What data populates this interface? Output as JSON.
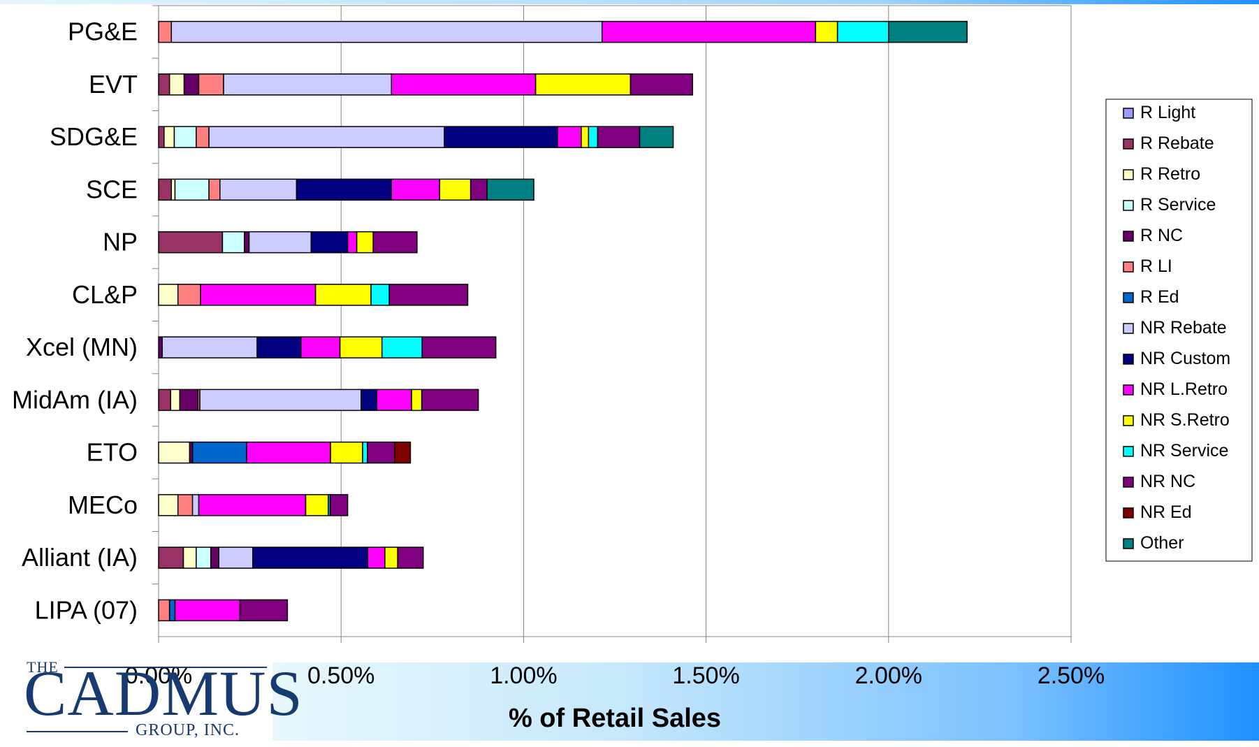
{
  "colors": {
    "R Light": "#9999ff",
    "R Rebate": "#993366",
    "R Retro": "#ffffcc",
    "R Service": "#ccffff",
    "R NC": "#660066",
    "R LI": "#ff8080",
    "R Ed": "#0066cc",
    "NR Rebate": "#ccccff",
    "NR Custom": "#000080",
    "NR L.Retro": "#ff00ff",
    "NR S.Retro": "#ffff00",
    "NR Service": "#00ffff",
    "NR NC": "#800080",
    "NR Ed": "#800000",
    "Other": "#008080"
  },
  "logo": {
    "the": "THE",
    "main": "CADMUS",
    "sub": "GROUP, INC."
  },
  "chart_data": {
    "type": "bar",
    "orientation": "horizontal",
    "stacked": true,
    "title": "",
    "xlabel": "% of Retail Sales",
    "ylabel": "",
    "xlim": [
      0,
      0.025
    ],
    "x_ticks": [
      0,
      0.005,
      0.01,
      0.015,
      0.02,
      0.025
    ],
    "x_tick_labels": [
      "0.00%",
      "0.50%",
      "1.00%",
      "1.50%",
      "2.00%",
      "2.50%"
    ],
    "grid": "vertical",
    "legend_position": "right",
    "categories": [
      "PG&E",
      "EVT",
      "SDG&E",
      "SCE",
      "NP",
      "CL&P",
      "Xcel (MN)",
      "MidAm (IA)",
      "ETO",
      "MECo",
      "Alliant (IA)",
      "LIPA (07)"
    ],
    "series": [
      {
        "name": "R Light",
        "values": [
          0,
          0,
          0,
          0,
          0,
          0,
          0,
          0,
          0,
          0,
          0,
          0
        ]
      },
      {
        "name": "R Rebate",
        "values": [
          0,
          0.0003,
          0.00015,
          0.00035,
          0.00175,
          0,
          0,
          0.00033,
          0,
          0,
          0.00068,
          0
        ]
      },
      {
        "name": "R Retro",
        "values": [
          0,
          0.0004,
          0.00028,
          0.0001,
          0,
          0.00053,
          0,
          0.00025,
          0.00085,
          0.00053,
          0.00035,
          0
        ]
      },
      {
        "name": "R Service",
        "values": [
          0,
          0,
          0.0006,
          0.00093,
          0.0006,
          0,
          0,
          0,
          0,
          0,
          0.0004,
          0
        ]
      },
      {
        "name": "R NC",
        "values": [
          0,
          0.0004,
          0,
          0,
          0.00013,
          0,
          0.0001,
          0.0005,
          8e-05,
          0,
          0.00022,
          0
        ]
      },
      {
        "name": "R LI",
        "values": [
          0.00035,
          0.00068,
          0.00035,
          0.0003,
          0,
          0.00062,
          0,
          5e-05,
          0,
          0.0004,
          0,
          0.0003
        ]
      },
      {
        "name": "R Ed",
        "values": [
          0,
          0,
          0,
          0,
          0,
          0,
          0,
          0,
          0.00148,
          0,
          0,
          0.00015
        ]
      },
      {
        "name": "NR Rebate",
        "values": [
          0.0118,
          0.0046,
          0.00645,
          0.0021,
          0.0017,
          0,
          0.0026,
          0.00442,
          0,
          0.00017,
          0.00093,
          0
        ]
      },
      {
        "name": "NR Custom",
        "values": [
          0,
          0,
          0.0031,
          0.0026,
          0.001,
          0,
          0.0012,
          0.00043,
          0,
          0,
          0.00315,
          0
        ]
      },
      {
        "name": "NR L.Retro",
        "values": [
          0.00585,
          0.00395,
          0.00065,
          0.00132,
          0.00025,
          0.00315,
          0.00107,
          0.00095,
          0.0023,
          0.00293,
          0.00047,
          0.00178
        ]
      },
      {
        "name": "NR S.Retro",
        "values": [
          0.0006,
          0.0026,
          0.0002,
          0.00085,
          0.00045,
          0.00152,
          0.00115,
          0.00028,
          0.00088,
          0.00062,
          0.00035,
          0
        ]
      },
      {
        "name": "NR Service",
        "values": [
          0.0014,
          0,
          0.00025,
          0,
          0,
          0.0005,
          0.0011,
          0,
          0.00013,
          5e-05,
          0,
          0
        ]
      },
      {
        "name": "NR NC",
        "values": [
          0,
          0.0017,
          0.00115,
          0.00045,
          0.0012,
          0.00215,
          0.00202,
          0.00155,
          0.00075,
          0.00048,
          0.0007,
          0.0013
        ]
      },
      {
        "name": "NR Ed",
        "values": [
          0,
          0,
          0,
          0,
          0,
          0,
          0,
          0,
          0.00043,
          0,
          0,
          0
        ]
      },
      {
        "name": "Other",
        "values": [
          0.00215,
          0,
          0.00092,
          0.00128,
          0,
          0,
          0,
          0,
          0,
          0,
          0,
          0
        ]
      }
    ]
  }
}
